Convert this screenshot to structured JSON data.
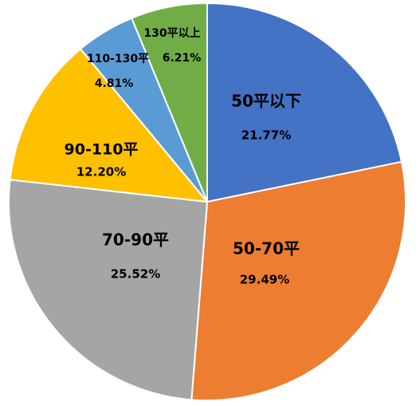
{
  "chart_data": {
    "type": "pie",
    "title": "",
    "start_angle_deg": 0,
    "direction": "clockwise",
    "slices": [
      {
        "label": "50平以下",
        "value": 21.77,
        "display": "21.77%",
        "color": "#4472C4"
      },
      {
        "label": "50-70平",
        "value": 29.49,
        "display": "29.49%",
        "color": "#ED7D31"
      },
      {
        "label": "70-90平",
        "value": 25.52,
        "display": "25.52%",
        "color": "#A5A5A5"
      },
      {
        "label": "90-110平",
        "value": 12.2,
        "display": "12.20%",
        "color": "#FFC000"
      },
      {
        "label": "110-130平",
        "value": 4.81,
        "display": "4.81%",
        "color": "#5B9BD5"
      },
      {
        "label": "130平以上",
        "value": 6.21,
        "display": "6.21%",
        "color": "#70AD47"
      }
    ],
    "legend": "none",
    "slice_border_color": "#FFFFFF"
  }
}
